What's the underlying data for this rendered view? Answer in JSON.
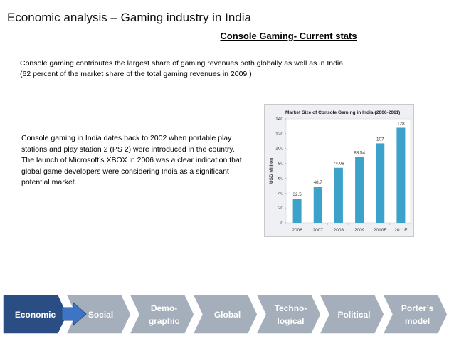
{
  "header": {
    "title": "Economic analysis – Gaming industry in India",
    "subtitle": "Console Gaming- Current stats"
  },
  "body": {
    "para1_line1": "Console gaming contributes the largest share of gaming revenues both globally as well as in India.",
    "para1_line2": "(62 percent of the market share of the total gaming revenues in 2009 )",
    "para2": "Console gaming in India dates back to 2002 when portable play stations and play station 2 (PS 2) were introduced in the country. The launch of Microsoft’s XBOX in 2006 was a clear indication that global game developers were considering India as a significant potential market."
  },
  "chart_data": {
    "type": "bar",
    "title": "Market Size of Console Gaming in India-(2006-2011)",
    "ylabel": "USD Million",
    "categories": [
      "2006",
      "2007",
      "2008",
      "2009",
      "2010E",
      "2011E"
    ],
    "values": [
      32.5,
      48.7,
      74.08,
      88.54,
      107,
      128
    ],
    "value_labels": [
      "32.5",
      "48.7",
      "74.08",
      "88.54",
      "107",
      "128"
    ],
    "yticks": [
      "0",
      "20",
      "40",
      "60",
      "80",
      "100",
      "120",
      "140"
    ],
    "ylim": [
      0,
      140
    ],
    "bar_color": "#3da2c9"
  },
  "nav": {
    "items": [
      {
        "label": "Economic",
        "active": true
      },
      {
        "label": "Social",
        "active": false
      },
      {
        "label": "Demo-\ngraphic",
        "active": false
      },
      {
        "label": "Global",
        "active": false
      },
      {
        "label": "Techno-\nlogical",
        "active": false
      },
      {
        "label": "Political",
        "active": false
      },
      {
        "label": "Porter’s\nmodel",
        "active": false
      }
    ],
    "active_color": "#2a4d84",
    "inactive_color": "#a5aebb"
  }
}
